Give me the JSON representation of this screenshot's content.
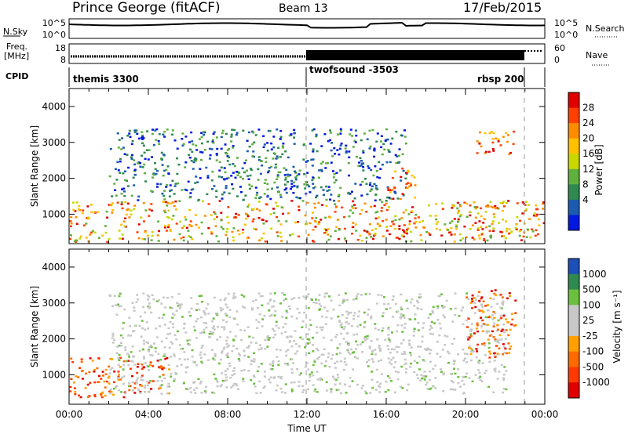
{
  "header": {
    "station": "Prince George (fitACF)",
    "beam": "Beam 13",
    "date": "17/Feb/2015"
  },
  "top_panels": {
    "noise": {
      "left_label": "N.Sky",
      "right_label": "N.Search",
      "left_ticks": [
        "10^5",
        "10^0"
      ],
      "right_ticks": [
        "10^5",
        "10^0"
      ]
    },
    "freq": {
      "left_label": "Freq.",
      "left_unit": "[MHz]",
      "right_label": "Nave",
      "left_ticks": [
        "18",
        "8"
      ],
      "right_ticks": [
        "60",
        "0"
      ]
    },
    "cpid": {
      "label": "CPID",
      "segments": [
        "themis 3300",
        "twofsound -3503",
        "rbsp 200"
      ]
    }
  },
  "colorbars": {
    "power": {
      "title": "Power [dB]",
      "ticks": [
        "28",
        "24",
        "20",
        "16",
        "12",
        "8",
        "4"
      ],
      "colors": [
        "#e00000",
        "#ff4000",
        "#ff8c00",
        "#ffc000",
        "#c8d800",
        "#60b040",
        "#2f8a50",
        "#1c5cb0",
        "#0018e0"
      ]
    },
    "velocity": {
      "title": "Velocity [m s⁻¹]",
      "ticks": [
        "1000",
        "500",
        "100",
        "25",
        "-25",
        "-100",
        "-500",
        "-1000"
      ],
      "colors": [
        "#1c50b8",
        "#2f8a50",
        "#6cc040",
        "#c8c8c8",
        "#c8c8c8",
        "#ffa000",
        "#ff6a00",
        "#ff3a00",
        "#e00000"
      ]
    }
  },
  "chart_data": [
    {
      "type": "heatmap",
      "title": "Power",
      "xlabel": "",
      "ylabel": "Slant Range [km]",
      "xlim": [
        0,
        24
      ],
      "ylim": [
        180,
        4500
      ],
      "yticks": [
        "1000",
        "2000",
        "3000",
        "4000"
      ],
      "colorbar_label": "Power [dB]",
      "regions": [
        {
          "name": "near-range band",
          "x": [
            0,
            24
          ],
          "y_km": [
            250,
            1400
          ],
          "typical_dB": 20
        },
        {
          "name": "mid-range arc",
          "x": [
            2,
            17
          ],
          "y_km": [
            1400,
            3400
          ],
          "typical_dB": 8
        },
        {
          "name": "afternoon patch",
          "x": [
            16,
            17.5
          ],
          "y_km": [
            1400,
            2300
          ],
          "typical_dB": 24
        },
        {
          "name": "evening high range",
          "x": [
            20.5,
            22.5
          ],
          "y_km": [
            2700,
            3400
          ],
          "typical_dB": 20
        }
      ]
    },
    {
      "type": "heatmap",
      "title": "Velocity",
      "xlabel": "Time UT",
      "ylabel": "Slant Range [km]",
      "xlim": [
        0,
        24
      ],
      "ylim": [
        180,
        4500
      ],
      "xticks": [
        "00:00",
        "04:00",
        "08:00",
        "12:00",
        "16:00",
        "20:00",
        "00:00"
      ],
      "yticks": [
        "1000",
        "2000",
        "3000",
        "4000"
      ],
      "colorbar_label": "Velocity [m s⁻¹]",
      "regions": [
        {
          "name": "morning negative",
          "x": [
            0,
            5
          ],
          "y_km": [
            400,
            1500
          ],
          "typical_ms": -300
        },
        {
          "name": "ground scatter",
          "x": [
            2,
            22
          ],
          "y_km": [
            500,
            3300
          ],
          "typical_ms": 0
        },
        {
          "name": "evening negative",
          "x": [
            20,
            22.5
          ],
          "y_km": [
            1500,
            3400
          ],
          "typical_ms": -200
        }
      ]
    }
  ]
}
